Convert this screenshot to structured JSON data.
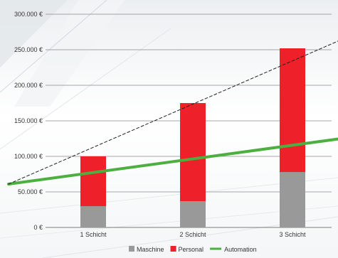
{
  "chart_data": {
    "type": "bar",
    "stacked": true,
    "categories": [
      "1 Schicht",
      "2 Schicht",
      "3 Schicht"
    ],
    "series": [
      {
        "name": "Maschine",
        "color": "#999999",
        "values": [
          30000,
          37000,
          78000
        ]
      },
      {
        "name": "Personal",
        "color": "#ee2029",
        "values": [
          70000,
          138000,
          174000
        ]
      }
    ],
    "lines": [
      {
        "name": "Automation",
        "color": "#4caf3f",
        "style": "solid",
        "points": [
          [
            -0.85,
            61000
          ],
          [
            2.8,
            131000
          ]
        ]
      },
      {
        "name": "",
        "color": "#222222",
        "style": "dashed",
        "points": [
          [
            -0.85,
            61000
          ],
          [
            2.8,
            283000
          ]
        ]
      }
    ],
    "ylim": [
      0,
      300000
    ],
    "yticks": [
      0,
      50000,
      100000,
      150000,
      200000,
      250000,
      300000
    ],
    "ytick_labels": [
      "0 €",
      "50.000 €",
      "100.000 €",
      "150.000 €",
      "200.000 €",
      "250.000 €",
      "300.000 €"
    ],
    "grid": true,
    "legend_position": "bottom",
    "legend": [
      {
        "label": "Maschine",
        "kind": "square",
        "color": "#999999"
      },
      {
        "label": "Personal",
        "kind": "square",
        "color": "#ee2029"
      },
      {
        "label": "Automation",
        "kind": "line",
        "color": "#4caf3f"
      }
    ]
  }
}
